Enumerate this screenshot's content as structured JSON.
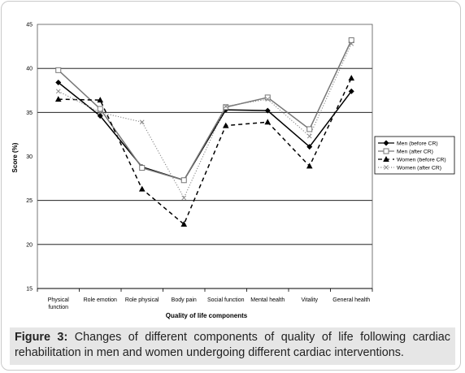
{
  "chart_data": {
    "type": "line",
    "title": "",
    "xlabel": "Quality of life components",
    "ylabel": "Score (%)",
    "ylim": [
      15,
      45
    ],
    "yticks": [
      "45",
      "40",
      "35",
      "30",
      "25",
      "20",
      "15"
    ],
    "categories": [
      "Physical function",
      "Role emotion",
      "Role physical",
      "Body pain",
      "Social function",
      "Mental health",
      "Vitality",
      "General health"
    ],
    "category_lines": [
      [
        "Physical",
        "function"
      ],
      [
        "Role emotion"
      ],
      [
        "Role physical"
      ],
      [
        "Body pain"
      ],
      [
        "Social function"
      ],
      [
        "Mental health"
      ],
      [
        "Vitality"
      ],
      [
        "General health"
      ]
    ],
    "grid": "horizontal at 20, 25, 35, 40",
    "legend_position": "right",
    "series": [
      {
        "name": "Men (before CR)",
        "values": [
          38.4,
          34.6,
          28.8,
          27.3,
          35.3,
          35.2,
          31.1,
          37.4
        ],
        "color": "#000000",
        "dash": "solid",
        "marker": "diamond"
      },
      {
        "name": "Men (after CR)",
        "values": [
          39.8,
          35.4,
          28.7,
          27.3,
          35.6,
          36.7,
          33.1,
          43.2
        ],
        "color": "#777777",
        "dash": "solid",
        "marker": "square"
      },
      {
        "name": "Women (before CR)",
        "values": [
          36.5,
          36.4,
          26.3,
          22.3,
          33.5,
          33.9,
          28.9,
          38.9
        ],
        "color": "#000000",
        "dash": "dashed",
        "marker": "triangle"
      },
      {
        "name": "Women (after CR)",
        "values": [
          37.4,
          35.0,
          33.9,
          25.3,
          35.7,
          36.5,
          32.3,
          42.8
        ],
        "color": "#888888",
        "dash": "dotted",
        "marker": "x"
      }
    ]
  },
  "caption": {
    "label": "Figure 3:",
    "text": " Changes of different components of quality of life following cardiac rehabilitation in men and women undergoing different cardiac interventions."
  }
}
